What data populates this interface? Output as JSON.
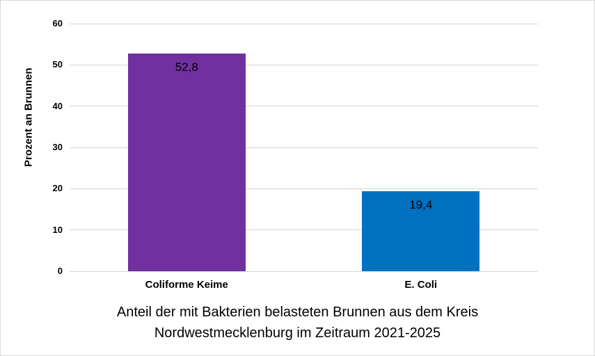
{
  "chart_data": {
    "type": "bar",
    "categories": [
      "Coliforme Keime",
      "E. Coli"
    ],
    "values": [
      52.8,
      19.4
    ],
    "value_labels": [
      "52,8",
      "19,4"
    ],
    "bar_colors": [
      "#7030A0",
      "#0070C0"
    ],
    "title": "Anteil der mit Bakterien belasteten Brunnen aus dem Kreis Nordwestmecklenburg im Zeitraum 2021-2025",
    "title_lines": [
      "Anteil der mit Bakterien belasteten Brunnen aus dem Kreis",
      "Nordwestmecklenburg im Zeitraum 2021-2025"
    ],
    "xlabel": "",
    "ylabel": "Prozent an Brunnen",
    "ylim": [
      0,
      60
    ],
    "yticks": [
      0,
      10,
      20,
      30,
      40,
      50,
      60
    ],
    "grid": true,
    "legend": false,
    "gridline_color": "#d4d4d4",
    "background_color": "#ffffff",
    "text_color": "#000000"
  }
}
